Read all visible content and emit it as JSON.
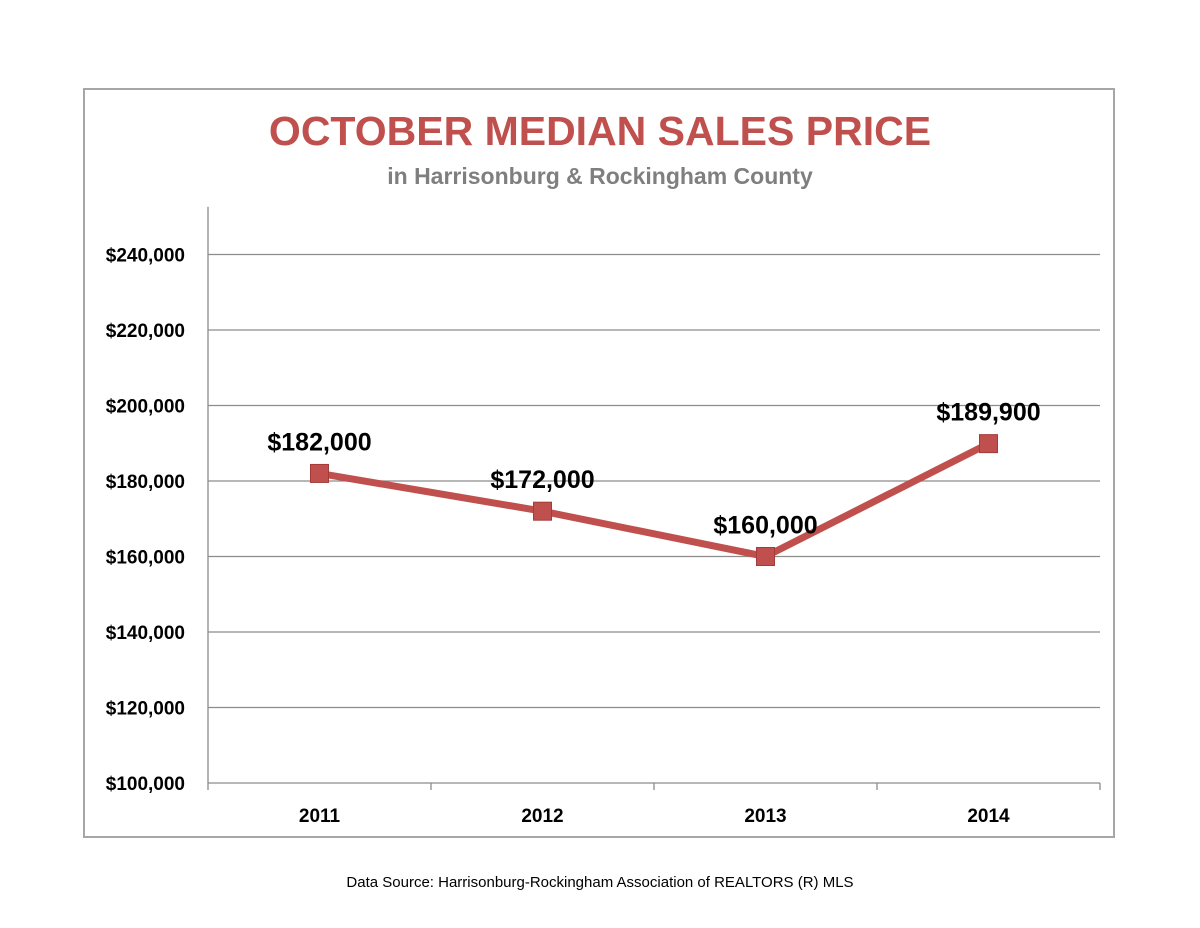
{
  "title": "OCTOBER MEDIAN SALES PRICE",
  "subtitle": "in Harrisonburg  & Rockingham County",
  "source": "Data Source: Harrisonburg-Rockingham Association of REALTORS (R) MLS",
  "colors": {
    "title": "#c0504d",
    "subtitle": "#7f7f7f",
    "series": "#c0504d",
    "marker": "#c0504d",
    "grid": "#8c8c8c"
  },
  "chart_data": {
    "type": "line",
    "categories": [
      "2011",
      "2012",
      "2013",
      "2014"
    ],
    "series": [
      {
        "values": [
          182000,
          172000,
          160000,
          189900
        ],
        "labels": [
          "$182,000",
          "$172,000",
          "$160,000",
          "$189,900"
        ],
        "marker": "square"
      }
    ],
    "yticks": [
      100000,
      120000,
      140000,
      160000,
      180000,
      200000,
      220000,
      240000
    ],
    "ytick_labels": [
      "$100,000",
      "$120,000",
      "$140,000",
      "$160,000",
      "$180,000",
      "$200,000",
      "$220,000",
      "$240,000"
    ],
    "ylim": [
      100000,
      250000
    ],
    "grid": true,
    "legend": "none",
    "xlabel": "",
    "ylabel": ""
  }
}
